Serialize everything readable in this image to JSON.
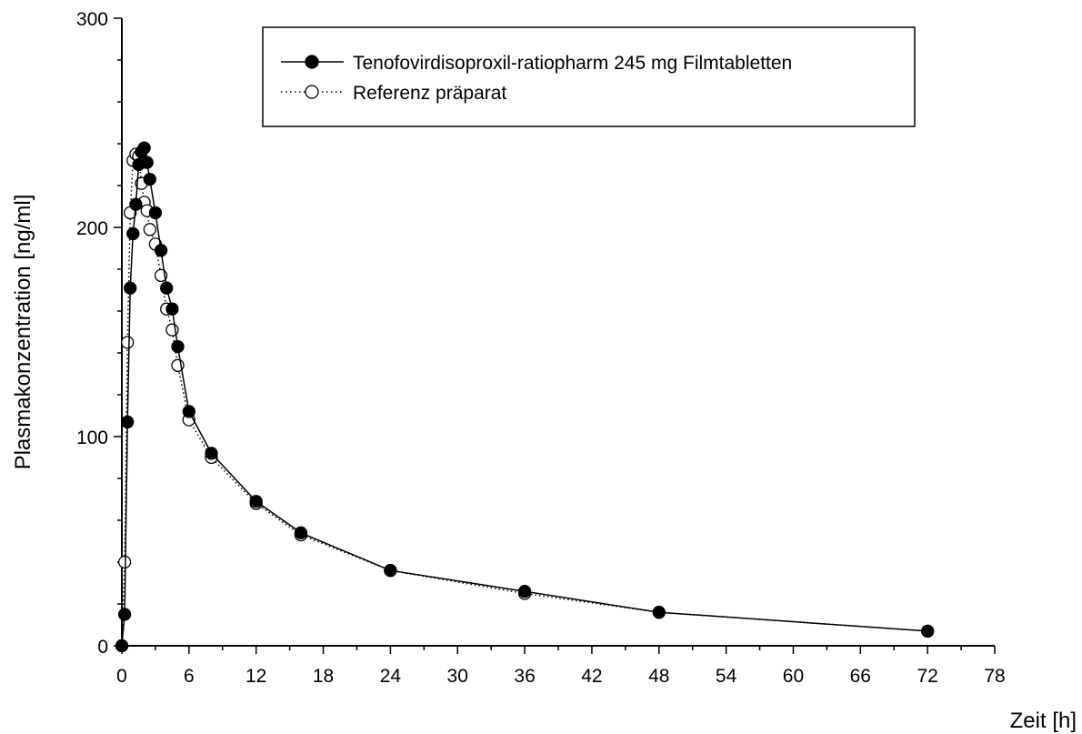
{
  "chart_data": {
    "type": "line",
    "title": "",
    "xlabel": "Zeit [h]",
    "ylabel": "Plasmakonzentration [ng/ml]",
    "xlim": [
      0,
      78
    ],
    "ylim": [
      0,
      300
    ],
    "xticks": [
      0,
      6,
      12,
      18,
      24,
      30,
      36,
      42,
      48,
      54,
      60,
      66,
      72,
      78
    ],
    "yticks": [
      0,
      100,
      200,
      300
    ],
    "x_minor_step": 3,
    "y_minor_step": 20,
    "grid": false,
    "legend_position": "top-center",
    "series": [
      {
        "name": "Tenofovirdisoproxil-ratiopharm 245 mg Filmtabletten",
        "marker": "filled-circle",
        "line_style": "solid",
        "color": "#000000",
        "points": [
          [
            0,
            0
          ],
          [
            0.25,
            15
          ],
          [
            0.5,
            107
          ],
          [
            0.75,
            171
          ],
          [
            1,
            197
          ],
          [
            1.25,
            211
          ],
          [
            1.5,
            230
          ],
          [
            1.75,
            236
          ],
          [
            2,
            238
          ],
          [
            2.25,
            231
          ],
          [
            2.5,
            223
          ],
          [
            3,
            207
          ],
          [
            3.5,
            189
          ],
          [
            4,
            171
          ],
          [
            4.5,
            161
          ],
          [
            5,
            143
          ],
          [
            6,
            112
          ],
          [
            8,
            92
          ],
          [
            12,
            69
          ],
          [
            16,
            54
          ],
          [
            24,
            36
          ],
          [
            36,
            26
          ],
          [
            48,
            16
          ],
          [
            72,
            7
          ]
        ]
      },
      {
        "name": "Referenz präparat",
        "marker": "open-circle",
        "line_style": "dotted",
        "color": "#000000",
        "points": [
          [
            0,
            0
          ],
          [
            0.25,
            40
          ],
          [
            0.5,
            145
          ],
          [
            0.75,
            207
          ],
          [
            1,
            232
          ],
          [
            1.25,
            235
          ],
          [
            1.5,
            234
          ],
          [
            1.75,
            221
          ],
          [
            2,
            212
          ],
          [
            2.25,
            208
          ],
          [
            2.5,
            199
          ],
          [
            3,
            192
          ],
          [
            3.5,
            177
          ],
          [
            4,
            161
          ],
          [
            4.5,
            151
          ],
          [
            5,
            134
          ],
          [
            6,
            108
          ],
          [
            8,
            90
          ],
          [
            12,
            68
          ],
          [
            16,
            53
          ],
          [
            24,
            36
          ],
          [
            36,
            25
          ],
          [
            48,
            16
          ],
          [
            72,
            7
          ]
        ]
      }
    ]
  }
}
